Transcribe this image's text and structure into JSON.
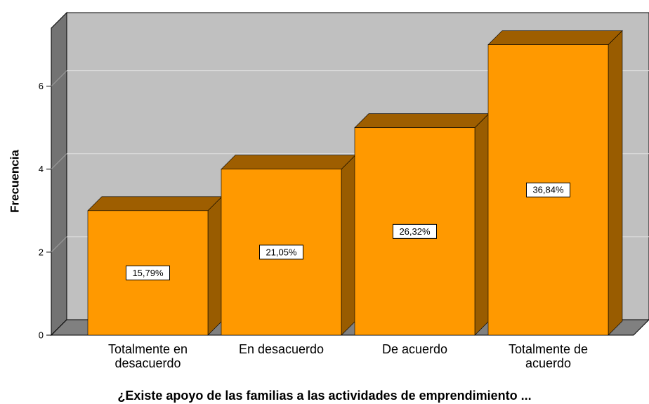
{
  "chart_data": {
    "type": "bar3d",
    "ylabel": "Frecuencia",
    "xlabel": "¿Existe apoyo de las familias a las actividades de emprendimiento ...",
    "categories": [
      "Totalmente en desacuerdo",
      "En desacuerdo",
      "De acuerdo",
      "Totalmente de acuerdo"
    ],
    "values": [
      3,
      4,
      5,
      7
    ],
    "percentages": {
      "values": [
        15.79,
        21.05,
        26.32,
        36.84
      ],
      "value_labels": [
        "15,79%",
        "21,05%",
        "26,32%",
        "36,84%"
      ]
    },
    "color": "#ff9900",
    "ylim": [
      0,
      7.4
    ],
    "yticks": [
      0,
      2,
      4,
      6
    ],
    "grid": true
  }
}
